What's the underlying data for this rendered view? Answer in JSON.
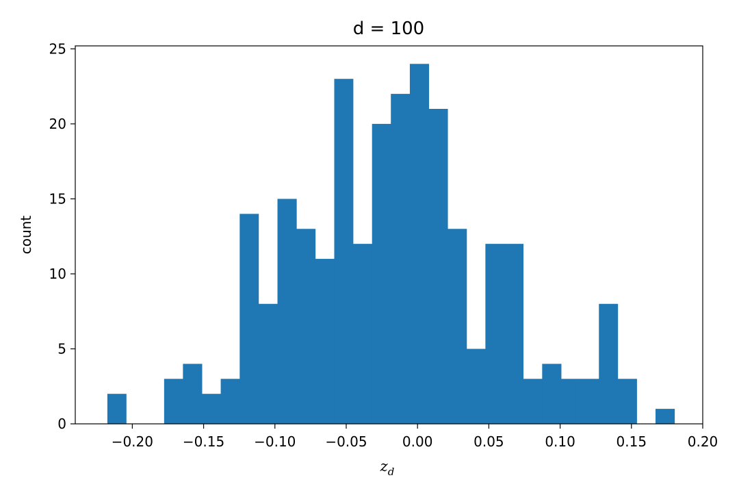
{
  "chart_data": {
    "type": "bar",
    "title": "d = 100",
    "xlabel": "z",
    "xlabel_subscript": "d",
    "ylabel": "count",
    "xlim": [
      -0.24,
      0.2
    ],
    "ylim": [
      0,
      25.2
    ],
    "grid": false,
    "bar_color": "#1f77b4",
    "bins": [
      {
        "x0": -0.2175,
        "x1": -0.2043,
        "count": 2
      },
      {
        "x0": -0.2043,
        "x1": -0.191,
        "count": 0
      },
      {
        "x0": -0.191,
        "x1": -0.1777,
        "count": 0
      },
      {
        "x0": -0.1777,
        "x1": -0.1645,
        "count": 3
      },
      {
        "x0": -0.1645,
        "x1": -0.1512,
        "count": 4
      },
      {
        "x0": -0.1512,
        "x1": -0.138,
        "count": 2
      },
      {
        "x0": -0.138,
        "x1": -0.1247,
        "count": 3
      },
      {
        "x0": -0.1247,
        "x1": -0.1115,
        "count": 14
      },
      {
        "x0": -0.1115,
        "x1": -0.0982,
        "count": 8
      },
      {
        "x0": -0.0982,
        "x1": -0.0849,
        "count": 15
      },
      {
        "x0": -0.0849,
        "x1": -0.0717,
        "count": 13
      },
      {
        "x0": -0.0717,
        "x1": -0.0584,
        "count": 11
      },
      {
        "x0": -0.0584,
        "x1": -0.0452,
        "count": 23
      },
      {
        "x0": -0.0452,
        "x1": -0.0319,
        "count": 12
      },
      {
        "x0": -0.0319,
        "x1": -0.0187,
        "count": 20
      },
      {
        "x0": -0.0187,
        "x1": -0.0054,
        "count": 22
      },
      {
        "x0": -0.0054,
        "x1": 0.0079,
        "count": 24
      },
      {
        "x0": 0.0079,
        "x1": 0.0211,
        "count": 21
      },
      {
        "x0": 0.0211,
        "x1": 0.0344,
        "count": 13
      },
      {
        "x0": 0.0344,
        "x1": 0.0476,
        "count": 5
      },
      {
        "x0": 0.0476,
        "x1": 0.0609,
        "count": 12
      },
      {
        "x0": 0.0609,
        "x1": 0.0741,
        "count": 12
      },
      {
        "x0": 0.0741,
        "x1": 0.0874,
        "count": 3
      },
      {
        "x0": 0.0874,
        "x1": 0.1007,
        "count": 4
      },
      {
        "x0": 0.1007,
        "x1": 0.1139,
        "count": 3
      },
      {
        "x0": 0.1139,
        "x1": 0.1272,
        "count": 3
      },
      {
        "x0": 0.1272,
        "x1": 0.1404,
        "count": 8
      },
      {
        "x0": 0.1404,
        "x1": 0.1537,
        "count": 3
      },
      {
        "x0": 0.1537,
        "x1": 0.1669,
        "count": 0
      },
      {
        "x0": 0.1669,
        "x1": 0.1802,
        "count": 1
      }
    ],
    "xticks": [
      {
        "value": -0.2,
        "label": "−0.20"
      },
      {
        "value": -0.15,
        "label": "−0.15"
      },
      {
        "value": -0.1,
        "label": "−0.10"
      },
      {
        "value": -0.05,
        "label": "−0.05"
      },
      {
        "value": 0.0,
        "label": "0.00"
      },
      {
        "value": 0.05,
        "label": "0.05"
      },
      {
        "value": 0.1,
        "label": "0.10"
      },
      {
        "value": 0.15,
        "label": "0.15"
      },
      {
        "value": 0.2,
        "label": "0.20"
      }
    ],
    "yticks": [
      {
        "value": 0,
        "label": "0"
      },
      {
        "value": 5,
        "label": "5"
      },
      {
        "value": 10,
        "label": "10"
      },
      {
        "value": 15,
        "label": "15"
      },
      {
        "value": 20,
        "label": "20"
      },
      {
        "value": 25,
        "label": "25"
      }
    ]
  }
}
